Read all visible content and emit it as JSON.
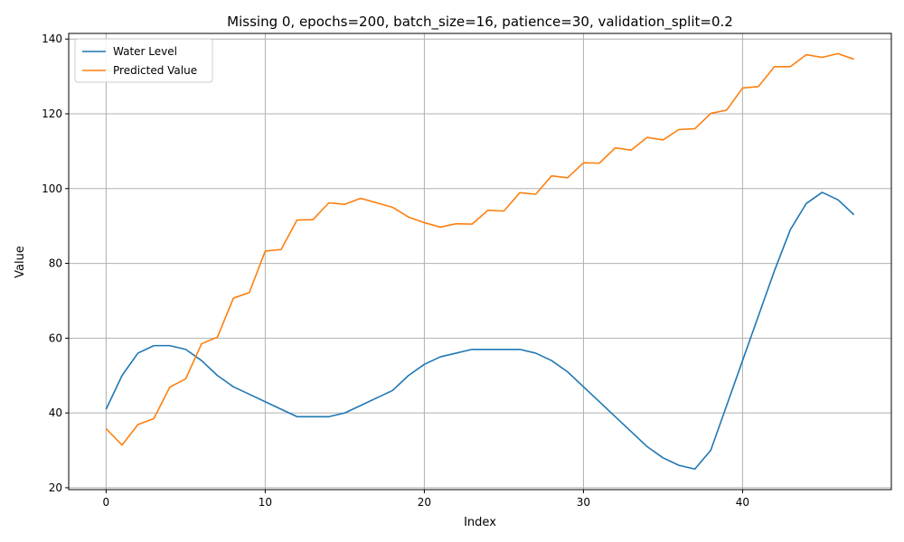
{
  "chart_data": {
    "type": "line",
    "title": "Missing 0, epochs=200, batch_size=16, patience=30, validation_split=0.2",
    "xlabel": "Index",
    "ylabel": "Value",
    "xlim": [
      -2.35,
      49.35
    ],
    "ylim": [
      19.5,
      141.5
    ],
    "xticks": [
      0,
      10,
      20,
      30,
      40
    ],
    "yticks": [
      20,
      40,
      60,
      80,
      100,
      120,
      140
    ],
    "grid": true,
    "legend_position": "upper-left",
    "x": [
      0,
      1,
      2,
      3,
      4,
      5,
      6,
      7,
      8,
      9,
      10,
      11,
      12,
      13,
      14,
      15,
      16,
      17,
      18,
      19,
      20,
      21,
      22,
      23,
      24,
      25,
      26,
      27,
      28,
      29,
      30,
      31,
      32,
      33,
      34,
      35,
      36,
      37,
      38,
      39,
      40,
      41,
      42,
      43,
      44,
      45,
      46,
      47
    ],
    "series": [
      {
        "name": "Water Level",
        "color": "#1f77b4",
        "values": [
          41,
          50,
          56,
          58,
          58,
          57,
          54,
          50,
          47,
          45,
          43,
          41,
          39,
          39,
          39,
          40,
          42,
          44,
          46,
          50,
          53,
          55,
          56,
          57,
          57,
          57,
          57,
          56,
          54,
          51,
          47,
          43,
          39,
          35,
          31,
          28,
          26,
          25,
          30,
          42,
          54,
          66,
          78,
          89,
          96,
          99,
          97,
          93
        ]
      },
      {
        "name": "Predicted Value",
        "color": "#ff7f0e",
        "values": [
          35.8,
          31.4,
          36.9,
          38.5,
          46.9,
          49.1,
          58.5,
          60.3,
          70.7,
          72.2,
          83.3,
          83.7,
          91.6,
          91.7,
          96.2,
          95.8,
          97.4,
          96.2,
          95.0,
          92.4,
          90.9,
          89.7,
          90.6,
          90.5,
          94.2,
          94.0,
          98.9,
          98.5,
          103.4,
          102.9,
          106.9,
          106.8,
          110.9,
          110.3,
          113.7,
          113.0,
          115.8,
          116.0,
          120.1,
          121.0,
          126.9,
          127.3,
          132.6,
          132.6,
          135.8,
          135.1,
          136.1,
          134.6
        ]
      }
    ]
  }
}
